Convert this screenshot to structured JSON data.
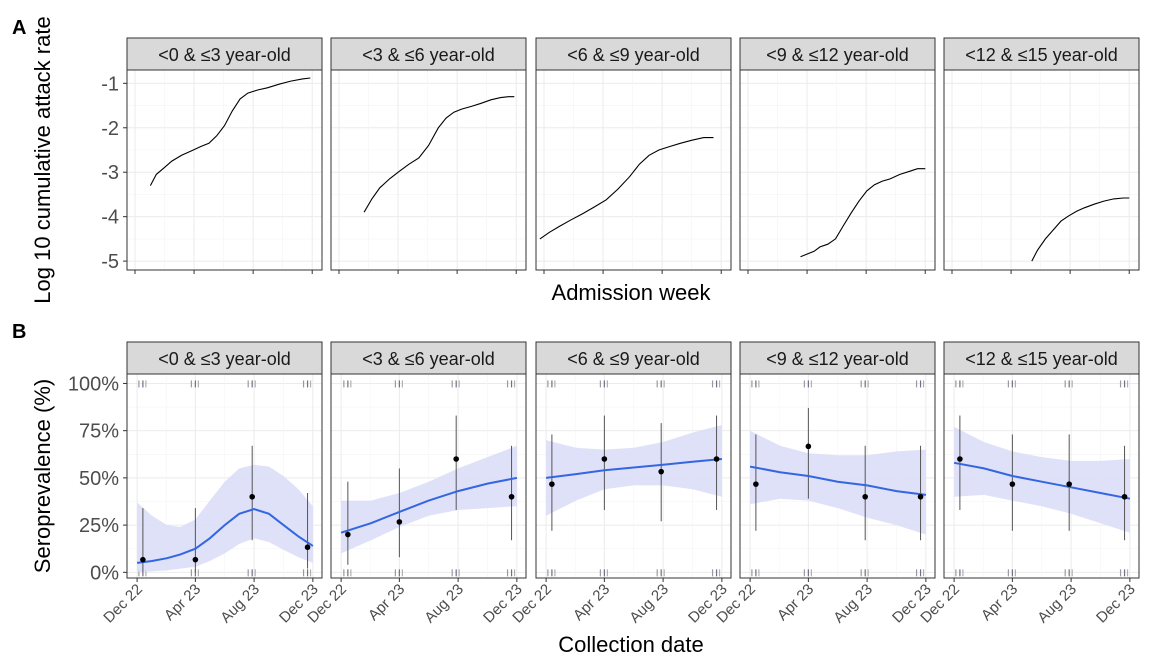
{
  "chart_data": [
    {
      "type": "line",
      "panel_label": "A",
      "ylabel": "Log 10 cumulative attack rate",
      "xlabel": "Admission week",
      "ylim": [
        -5.2,
        -0.7
      ],
      "yticks": [
        -5,
        -4,
        -3,
        -2,
        -1
      ],
      "ytick_labels": [
        "-5",
        "-4",
        "-3",
        "-2",
        "-1"
      ],
      "grid": true,
      "facets": [
        {
          "label": "<0 & ≤3 year-old",
          "series": [
            {
              "x": [
                0.12,
                0.15,
                0.19,
                0.23,
                0.28,
                0.33,
                0.38,
                0.42,
                0.46,
                0.5,
                0.54,
                0.58,
                0.62,
                0.67,
                0.72,
                0.78,
                0.84,
                0.9,
                0.94
              ],
              "y": [
                -3.3,
                -3.05,
                -2.9,
                -2.75,
                -2.62,
                -2.52,
                -2.42,
                -2.35,
                -2.18,
                -1.95,
                -1.62,
                -1.35,
                -1.22,
                -1.15,
                -1.1,
                -1.02,
                -0.95,
                -0.9,
                -0.88
              ]
            }
          ]
        },
        {
          "label": "<3 & ≤6 year-old",
          "series": [
            {
              "x": [
                0.17,
                0.21,
                0.25,
                0.3,
                0.35,
                0.4,
                0.45,
                0.5,
                0.55,
                0.59,
                0.63,
                0.67,
                0.72,
                0.77,
                0.82,
                0.87,
                0.91,
                0.94
              ],
              "y": [
                -3.9,
                -3.6,
                -3.35,
                -3.15,
                -2.98,
                -2.82,
                -2.68,
                -2.4,
                -2.0,
                -1.78,
                -1.65,
                -1.58,
                -1.52,
                -1.45,
                -1.37,
                -1.32,
                -1.3,
                -1.3
              ]
            }
          ]
        },
        {
          "label": "<6 & ≤9 year-old",
          "series": [
            {
              "x": [
                0.02,
                0.07,
                0.12,
                0.18,
                0.24,
                0.3,
                0.36,
                0.42,
                0.48,
                0.53,
                0.58,
                0.63,
                0.68,
                0.74,
                0.8,
                0.86,
                0.91
              ],
              "y": [
                -4.5,
                -4.35,
                -4.22,
                -4.07,
                -3.93,
                -3.78,
                -3.62,
                -3.38,
                -3.1,
                -2.82,
                -2.62,
                -2.5,
                -2.43,
                -2.35,
                -2.28,
                -2.22,
                -2.22
              ]
            }
          ]
        },
        {
          "label": "<9 & ≤12 year-old",
          "series": [
            {
              "x": [
                0.31,
                0.34,
                0.38,
                0.41,
                0.45,
                0.49,
                0.53,
                0.57,
                0.61,
                0.65,
                0.69,
                0.73,
                0.77,
                0.82,
                0.87,
                0.91,
                0.95
              ],
              "y": [
                -4.9,
                -4.85,
                -4.78,
                -4.68,
                -4.62,
                -4.5,
                -4.2,
                -3.92,
                -3.65,
                -3.42,
                -3.28,
                -3.2,
                -3.15,
                -3.05,
                -2.98,
                -2.92,
                -2.92
              ]
            }
          ]
        },
        {
          "label": "<12 & ≤15 year-old",
          "series": [
            {
              "x": [
                0.45,
                0.48,
                0.52,
                0.56,
                0.6,
                0.64,
                0.68,
                0.72,
                0.77,
                0.82,
                0.87,
                0.92,
                0.95
              ],
              "y": [
                -5.0,
                -4.75,
                -4.5,
                -4.3,
                -4.1,
                -3.98,
                -3.88,
                -3.8,
                -3.72,
                -3.65,
                -3.6,
                -3.58,
                -3.58
              ]
            }
          ]
        }
      ]
    },
    {
      "type": "scatter",
      "panel_label": "B",
      "ylabel": "Seroprevalence (%)",
      "xlabel": "Collection date",
      "ylim": [
        -3,
        105
      ],
      "yticks": [
        0,
        25,
        50,
        75,
        100
      ],
      "ytick_labels": [
        "0%",
        "25%",
        "50%",
        "75%",
        "100%"
      ],
      "xticks": [
        "2022-12-01",
        "2023-04-01",
        "2023-08-01",
        "2023-12-01"
      ],
      "xtick_labels": [
        "Dec 22",
        "Apr 23",
        "Aug 23",
        "Dec 23"
      ],
      "xlim": [
        "2022-11-10",
        "2023-12-20"
      ],
      "colors": {
        "fit_line": "#3366e0",
        "ribbon": "#d9dcf8",
        "points": "#000000",
        "strip": "#d9d9d9"
      },
      "grid": true,
      "facets": [
        {
          "label": "<0 & ≤3 year-old",
          "points": [
            {
              "x": "2022-12-13",
              "y": 6.7,
              "lo": 0.2,
              "hi": 34
            },
            {
              "x": "2023-04-01",
              "y": 6.7,
              "lo": 0.2,
              "hi": 34
            },
            {
              "x": "2023-07-28",
              "y": 40,
              "lo": 17,
              "hi": 67
            },
            {
              "x": "2023-11-20",
              "y": 13.3,
              "lo": 2,
              "hi": 42
            }
          ],
          "fit": {
            "x": [
              "2022-12-01",
              "2023-01-01",
              "2023-02-01",
              "2023-03-01",
              "2023-04-01",
              "2023-05-01",
              "2023-06-01",
              "2023-07-01",
              "2023-08-01",
              "2023-09-01",
              "2023-10-01",
              "2023-11-01",
              "2023-12-01"
            ],
            "y": [
              5,
              6,
              7.5,
              9.5,
              12.5,
              18,
              25,
              31,
              33.5,
              31,
              25,
              19,
              14
            ],
            "lo": [
              0,
              0.5,
              1,
              2,
              3,
              6,
              10,
              15,
              18,
              16,
              12,
              8,
              5
            ],
            "hi": [
              37,
              30,
              25,
              24,
              28,
              38,
              48,
              55,
              57,
              56,
              51,
              44,
              35
            ]
          }
        },
        {
          "label": "<3 & ≤6 year-old",
          "points": [
            {
              "x": "2022-12-15",
              "y": 20,
              "lo": 4,
              "hi": 48
            },
            {
              "x": "2023-04-01",
              "y": 26.7,
              "lo": 8,
              "hi": 55
            },
            {
              "x": "2023-07-28",
              "y": 60,
              "lo": 33,
              "hi": 83
            },
            {
              "x": "2023-11-20",
              "y": 40,
              "lo": 17,
              "hi": 67
            }
          ],
          "fit": {
            "x": [
              "2022-12-01",
              "2023-02-01",
              "2023-04-01",
              "2023-06-01",
              "2023-08-01",
              "2023-10-01",
              "2023-12-01"
            ],
            "y": [
              21,
              26,
              32,
              38,
              43,
              47,
              50
            ],
            "lo": [
              10,
              17,
              24,
              30,
              33,
              34,
              35
            ],
            "hi": [
              38,
              38,
              42,
              48,
              55,
              61,
              67
            ]
          }
        },
        {
          "label": "<6 & ≤9 year-old",
          "points": [
            {
              "x": "2022-12-13",
              "y": 46.7,
              "lo": 22,
              "hi": 73
            },
            {
              "x": "2023-04-01",
              "y": 60,
              "lo": 33,
              "hi": 83
            },
            {
              "x": "2023-07-28",
              "y": 53.3,
              "lo": 27,
              "hi": 79
            },
            {
              "x": "2023-11-20",
              "y": 60,
              "lo": 33,
              "hi": 83
            }
          ],
          "fit": {
            "x": [
              "2022-12-01",
              "2023-02-01",
              "2023-04-01",
              "2023-06-01",
              "2023-08-01",
              "2023-10-01",
              "2023-12-01"
            ],
            "y": [
              50,
              52,
              54,
              55.5,
              57,
              58.5,
              60
            ],
            "lo": [
              30,
              38,
              44,
              46,
              46,
              44,
              40
            ],
            "hi": [
              70,
              66,
              65,
              66,
              69,
              74,
              78
            ]
          }
        },
        {
          "label": "<9 & ≤12 year-old",
          "points": [
            {
              "x": "2022-12-13",
              "y": 46.7,
              "lo": 22,
              "hi": 73
            },
            {
              "x": "2023-04-01",
              "y": 66.7,
              "lo": 39,
              "hi": 87
            },
            {
              "x": "2023-07-28",
              "y": 40,
              "lo": 17,
              "hi": 67
            },
            {
              "x": "2023-11-20",
              "y": 40,
              "lo": 17,
              "hi": 67
            }
          ],
          "fit": {
            "x": [
              "2022-12-01",
              "2023-02-01",
              "2023-04-01",
              "2023-06-01",
              "2023-08-01",
              "2023-10-01",
              "2023-12-01"
            ],
            "y": [
              56,
              53,
              51,
              48,
              46,
              43,
              41
            ],
            "lo": [
              36,
              39,
              38,
              34,
              29,
              25,
              20
            ],
            "hi": [
              75,
              67,
              63,
              62,
              62,
              64,
              65
            ]
          }
        },
        {
          "label": "<12 & ≤15 year-old",
          "points": [
            {
              "x": "2022-12-13",
              "y": 60,
              "lo": 33,
              "hi": 83
            },
            {
              "x": "2023-04-01",
              "y": 46.7,
              "lo": 22,
              "hi": 73
            },
            {
              "x": "2023-07-28",
              "y": 46.7,
              "lo": 22,
              "hi": 73
            },
            {
              "x": "2023-11-20",
              "y": 40,
              "lo": 17,
              "hi": 67
            }
          ],
          "fit": {
            "x": [
              "2022-12-01",
              "2023-02-01",
              "2023-04-01",
              "2023-06-01",
              "2023-08-01",
              "2023-10-01",
              "2023-12-01"
            ],
            "y": [
              58,
              55,
              51,
              48,
              45,
              42,
              39
            ],
            "lo": [
              40,
              41,
              38,
              35,
              31,
              26,
              21
            ],
            "hi": [
              77,
              69,
              64,
              61,
              59,
              59,
              60
            ]
          }
        }
      ]
    }
  ]
}
